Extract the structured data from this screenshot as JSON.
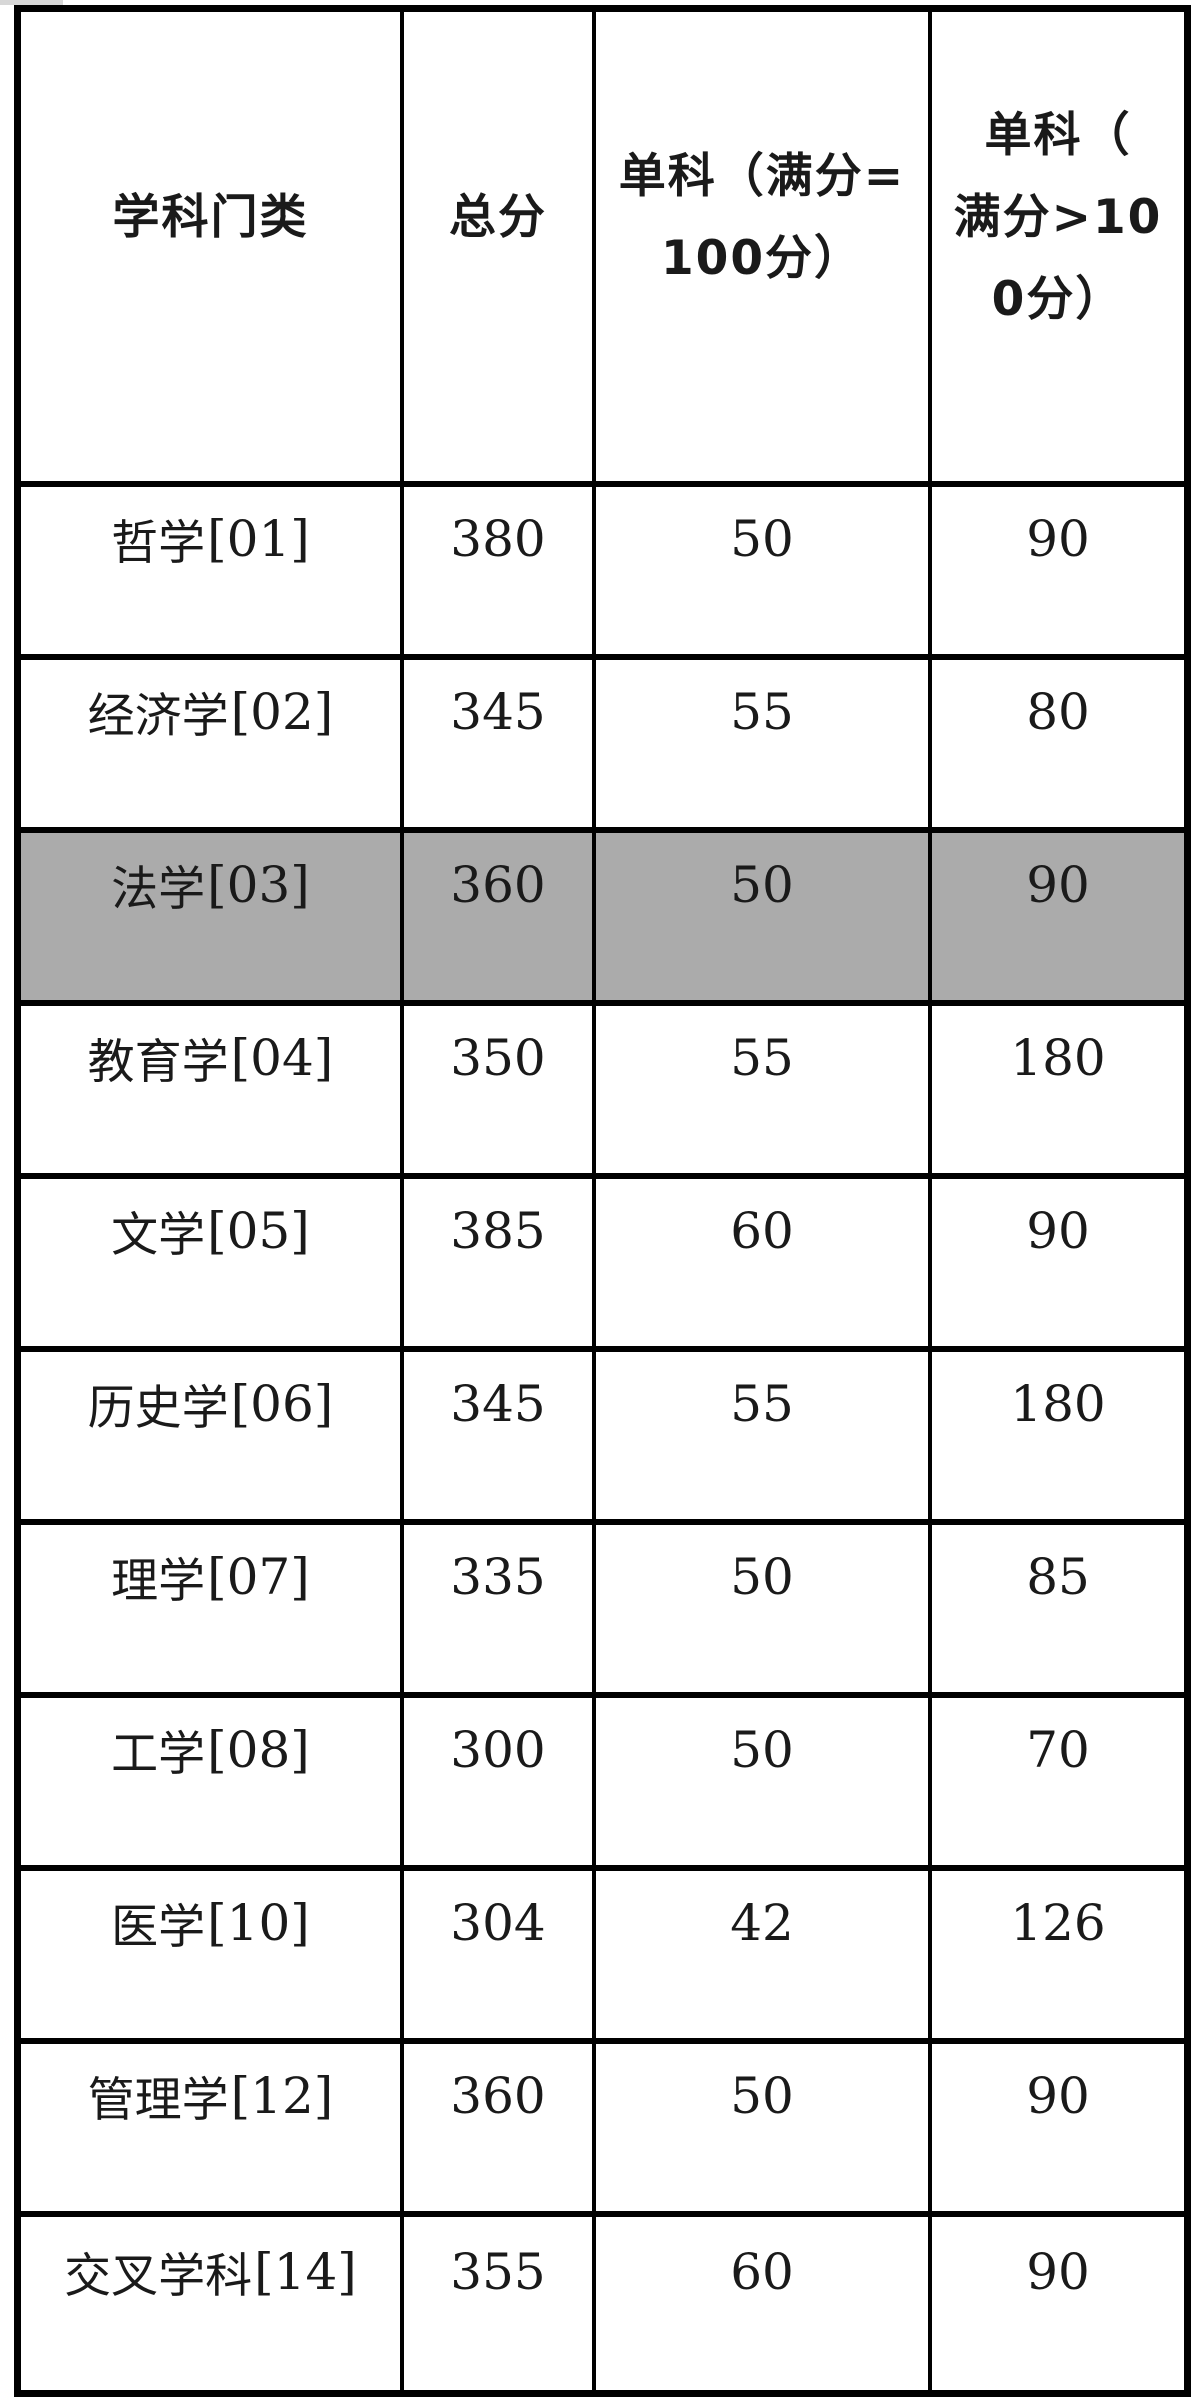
{
  "colors": {
    "background": "#ffffff",
    "border": "#000000",
    "text": "#1a1a1a",
    "highlight_row_bg": "#ababab",
    "scan_artifact": "#d7d7d7"
  },
  "table": {
    "header": {
      "col1": "学科门类",
      "col2": "总分",
      "col3_lines": [
        "单科（满分=",
        "100分）"
      ],
      "col4_lines": [
        "单科（",
        "满分>10",
        "0分）"
      ]
    },
    "rows": [
      {
        "subject": "哲学",
        "code": "[01]",
        "total": "380",
        "single_max100": "50",
        "single_over100": "90",
        "highlighted": false
      },
      {
        "subject": "经济学",
        "code": "[02]",
        "total": "345",
        "single_max100": "55",
        "single_over100": "80",
        "highlighted": false
      },
      {
        "subject": "法学",
        "code": "[03]",
        "total": "360",
        "single_max100": "50",
        "single_over100": "90",
        "highlighted": true
      },
      {
        "subject": "教育学",
        "code": "[04]",
        "total": "350",
        "single_max100": "55",
        "single_over100": "180",
        "highlighted": false
      },
      {
        "subject": "文学",
        "code": "[05]",
        "total": "385",
        "single_max100": "60",
        "single_over100": "90",
        "highlighted": false
      },
      {
        "subject": "历史学",
        "code": "[06]",
        "total": "345",
        "single_max100": "55",
        "single_over100": "180",
        "highlighted": false
      },
      {
        "subject": "理学",
        "code": "[07]",
        "total": "335",
        "single_max100": "50",
        "single_over100": "85",
        "highlighted": false
      },
      {
        "subject": "工学",
        "code": "[08]",
        "total": "300",
        "single_max100": "50",
        "single_over100": "70",
        "highlighted": false
      },
      {
        "subject": "医学",
        "code": "[10]",
        "total": "304",
        "single_max100": "42",
        "single_over100": "126",
        "highlighted": false
      },
      {
        "subject": "管理学",
        "code": "[12]",
        "total": "360",
        "single_max100": "50",
        "single_over100": "90",
        "highlighted": false
      },
      {
        "subject": "交叉学科",
        "code": "[14]",
        "total": "355",
        "single_max100": "60",
        "single_over100": "90",
        "highlighted": false
      }
    ]
  },
  "chart_data": {
    "type": "table",
    "columns": [
      "学科门类",
      "总分",
      "单科（满分=100分）",
      "单科（满分>100分）"
    ],
    "rows": [
      [
        "哲学[01]",
        380,
        50,
        90
      ],
      [
        "经济学[02]",
        345,
        55,
        80
      ],
      [
        "法学[03]",
        360,
        50,
        90
      ],
      [
        "教育学[04]",
        350,
        55,
        180
      ],
      [
        "文学[05]",
        385,
        60,
        90
      ],
      [
        "历史学[06]",
        345,
        55,
        180
      ],
      [
        "理学[07]",
        335,
        50,
        85
      ],
      [
        "工学[08]",
        300,
        50,
        70
      ],
      [
        "医学[10]",
        304,
        42,
        126
      ],
      [
        "管理学[12]",
        360,
        50,
        90
      ],
      [
        "交叉学科[14]",
        355,
        60,
        90
      ]
    ],
    "highlighted_row": "法学[03]",
    "layout": {
      "grid": "full black borders",
      "header_row_tall": true
    }
  }
}
